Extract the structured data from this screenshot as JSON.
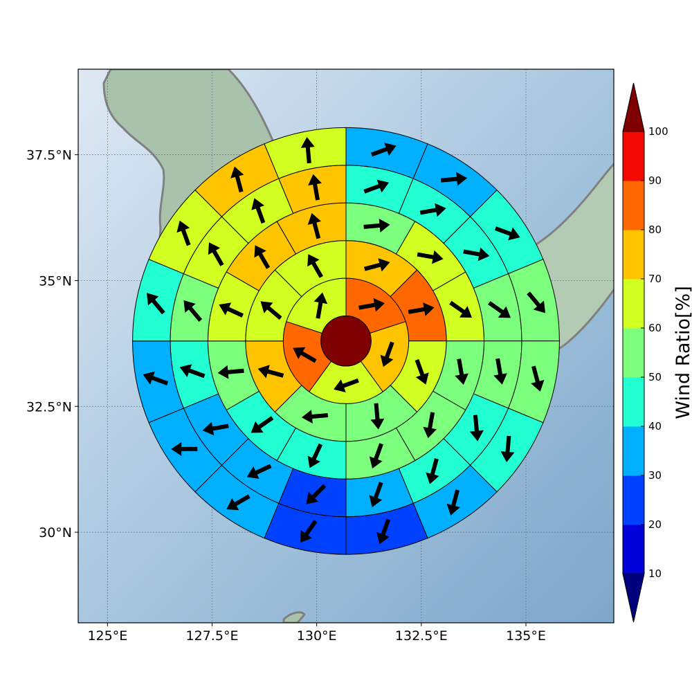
{
  "chart_data": {
    "type": "heatmap",
    "projection": "polar-sector grid over map",
    "x_axis": {
      "range_deg_E": [
        124.3,
        137.1
      ],
      "ticks": [
        125,
        127.5,
        130,
        132.5,
        135
      ],
      "tick_labels": [
        "125°E",
        "127.5°E",
        "130°E",
        "132.5°E",
        "135°E"
      ]
    },
    "y_axis": {
      "range_deg_N": [
        28.2,
        39.2
      ],
      "ticks": [
        30,
        32.5,
        35,
        37.5
      ],
      "tick_labels": [
        "30°N",
        "32.5°N",
        "35°N",
        "37.5°N"
      ]
    },
    "grid": true,
    "center_lon_lat": [
      130.7,
      33.8
    ],
    "ring_radii_deg": [
      0.6,
      1.5,
      2.4,
      3.3,
      4.2,
      5.1
    ],
    "center_cell": {
      "value": 100,
      "arrow": null
    },
    "rings": [
      {
        "ring": 1,
        "sectors": 5,
        "cells": [
          {
            "value": 85,
            "arrow_deg": 80
          },
          {
            "value": 75,
            "arrow_deg": 200
          },
          {
            "value": 65,
            "arrow_deg": 250
          },
          {
            "value": 85,
            "arrow_deg": 300
          },
          {
            "value": 65,
            "arrow_deg": 10
          }
        ]
      },
      {
        "ring": 2,
        "sectors": 8,
        "cells": [
          {
            "value": 75,
            "arrow_deg": 75
          },
          {
            "value": 85,
            "arrow_deg": 80
          },
          {
            "value": 65,
            "arrow_deg": 160
          },
          {
            "value": 55,
            "arrow_deg": 175
          },
          {
            "value": 55,
            "arrow_deg": 265
          },
          {
            "value": 75,
            "arrow_deg": 285
          },
          {
            "value": 65,
            "arrow_deg": 310
          },
          {
            "value": 65,
            "arrow_deg": 330
          }
        ]
      },
      {
        "ring": 3,
        "sectors": 12,
        "cells": [
          {
            "value": 55,
            "arrow_deg": 85
          },
          {
            "value": 65,
            "arrow_deg": 100
          },
          {
            "value": 65,
            "arrow_deg": 125
          },
          {
            "value": 55,
            "arrow_deg": 170
          },
          {
            "value": 55,
            "arrow_deg": 190
          },
          {
            "value": 55,
            "arrow_deg": 200
          },
          {
            "value": 45,
            "arrow_deg": 205
          },
          {
            "value": 45,
            "arrow_deg": 235
          },
          {
            "value": 55,
            "arrow_deg": 265
          },
          {
            "value": 65,
            "arrow_deg": 295
          },
          {
            "value": 75,
            "arrow_deg": 330
          },
          {
            "value": 75,
            "arrow_deg": 345
          }
        ]
      },
      {
        "ring": 4,
        "sectors": 16,
        "cells": [
          {
            "value": 45,
            "arrow_deg": 70
          },
          {
            "value": 45,
            "arrow_deg": 80
          },
          {
            "value": 45,
            "arrow_deg": 100
          },
          {
            "value": 55,
            "arrow_deg": 125
          },
          {
            "value": 55,
            "arrow_deg": 170
          },
          {
            "value": 45,
            "arrow_deg": 175
          },
          {
            "value": 45,
            "arrow_deg": 195
          },
          {
            "value": 35,
            "arrow_deg": 200
          },
          {
            "value": 25,
            "arrow_deg": 225
          },
          {
            "value": 35,
            "arrow_deg": 245
          },
          {
            "value": 35,
            "arrow_deg": 260
          },
          {
            "value": 45,
            "arrow_deg": 290
          },
          {
            "value": 55,
            "arrow_deg": 320
          },
          {
            "value": 65,
            "arrow_deg": 330
          },
          {
            "value": 65,
            "arrow_deg": 340
          },
          {
            "value": 75,
            "arrow_deg": 350
          }
        ]
      },
      {
        "ring": 5,
        "sectors": 16,
        "cells": [
          {
            "value": 35,
            "arrow_deg": 70
          },
          {
            "value": 35,
            "arrow_deg": 85
          },
          {
            "value": 45,
            "arrow_deg": 110
          },
          {
            "value": 55,
            "arrow_deg": 140
          },
          {
            "value": 55,
            "arrow_deg": 165
          },
          {
            "value": 45,
            "arrow_deg": 185
          },
          {
            "value": 35,
            "arrow_deg": 195
          },
          {
            "value": 25,
            "arrow_deg": 200
          },
          {
            "value": 25,
            "arrow_deg": 215
          },
          {
            "value": 35,
            "arrow_deg": 240
          },
          {
            "value": 35,
            "arrow_deg": 270
          },
          {
            "value": 35,
            "arrow_deg": 290
          },
          {
            "value": 45,
            "arrow_deg": 320
          },
          {
            "value": 65,
            "arrow_deg": 340
          },
          {
            "value": 75,
            "arrow_deg": 345
          },
          {
            "value": 65,
            "arrow_deg": 355
          }
        ]
      },
      {
        "ring": 6,
        "sectors": 16,
        "cells": [
          {
            "value": 35,
            "arrow_deg": 70
          },
          {
            "value": 25,
            "arrow_deg": 80
          },
          {
            "value": 35,
            "arrow_deg": 115
          },
          {
            "value": 45,
            "arrow_deg": 150
          },
          {
            "value": 45,
            "arrow_deg": 165
          },
          {
            "value": 35,
            "arrow_deg": 175
          },
          {
            "value": 25,
            "arrow_deg": 190
          },
          {
            "value": 25,
            "arrow_deg": 210
          },
          {
            "value": 25,
            "arrow_deg": 220
          },
          {
            "value": 35,
            "arrow_deg": 240
          },
          {
            "value": 35,
            "arrow_deg": 265
          },
          {
            "value": 35,
            "arrow_deg": 300
          },
          {
            "value": 45,
            "arrow_deg": 330
          },
          {
            "value": 55,
            "arrow_deg": 345
          },
          {
            "value": 65,
            "arrow_deg": 345
          },
          {
            "value": 55,
            "arrow_deg": 30
          }
        ]
      }
    ],
    "colorbar": {
      "label": "Wind Ratio[%]",
      "ticks": [
        10,
        20,
        30,
        40,
        50,
        60,
        70,
        80,
        90,
        100
      ],
      "boundaries": [
        10,
        20,
        30,
        40,
        50,
        60,
        70,
        80,
        90,
        100
      ],
      "colors": [
        "#0000d8",
        "#0040ff",
        "#00b0ff",
        "#22ffd2",
        "#7cff7c",
        "#d2ff22",
        "#ffc400",
        "#ff6800",
        "#f20a00"
      ],
      "under_color": "#00007f",
      "over_color": "#7f0000",
      "extend": "both"
    }
  }
}
